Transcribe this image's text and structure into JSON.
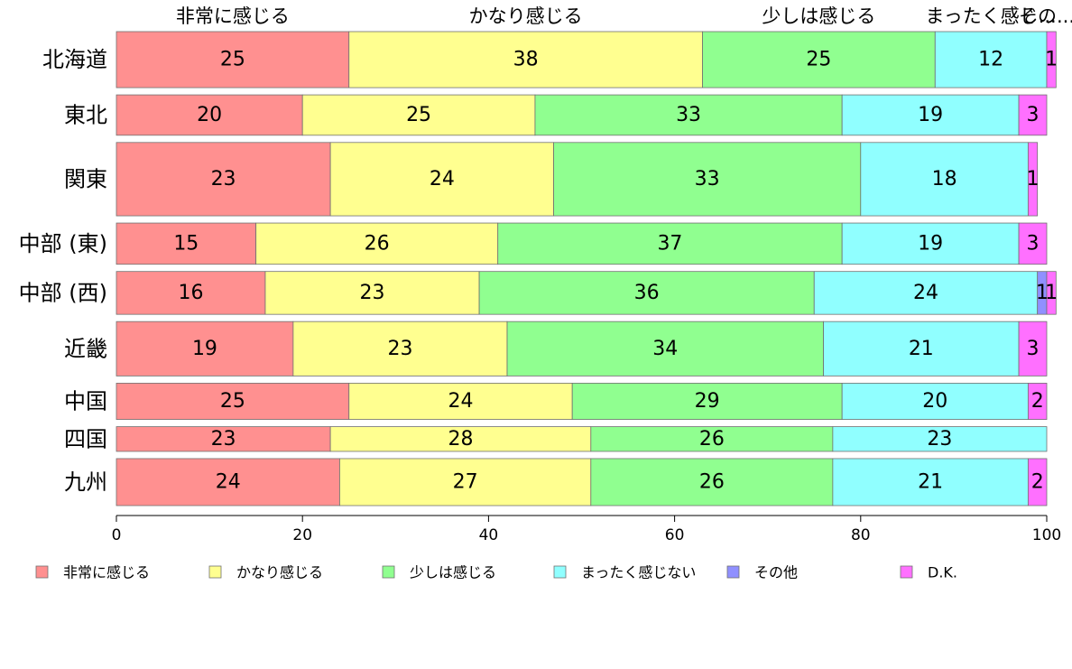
{
  "chart_data": {
    "type": "bar",
    "orientation": "horizontal",
    "stacked": true,
    "categories": [
      "北海道",
      "東北",
      "関東",
      "中部 (東)",
      "中部 (西)",
      "近畿",
      "中国",
      "四国",
      "九州"
    ],
    "series": [
      {
        "name": "非常に感じる",
        "top_label": "非常に感じる",
        "color": "#FF9090",
        "values": [
          25,
          20,
          23,
          15,
          16,
          19,
          25,
          23,
          24
        ]
      },
      {
        "name": "かなり感じる",
        "top_label": "かなり感じる",
        "color": "#FFFF90",
        "values": [
          38,
          25,
          24,
          26,
          23,
          23,
          24,
          28,
          27
        ]
      },
      {
        "name": "少しは感じる",
        "top_label": "少しは感じる",
        "color": "#90FF90",
        "values": [
          25,
          33,
          33,
          37,
          36,
          34,
          29,
          26,
          26
        ]
      },
      {
        "name": "まったく感じない",
        "top_label": "まったく感じ...",
        "color": "#90FFFF",
        "values": [
          12,
          19,
          18,
          19,
          24,
          21,
          20,
          23,
          21
        ]
      },
      {
        "name": "その他",
        "top_label": "その...",
        "color": "#9090FF",
        "values": [
          0,
          0,
          0,
          0,
          1,
          0,
          0,
          0,
          0
        ]
      },
      {
        "name": "D.K.",
        "color": "#FF70FF",
        "values": [
          1,
          3,
          1,
          3,
          1,
          3,
          2,
          0,
          2
        ]
      }
    ],
    "bar_heights_relative": [
      68,
      49,
      89,
      50,
      52,
      66,
      44,
      30,
      57
    ],
    "xlim": [
      0,
      100
    ],
    "xticks": [
      0,
      20,
      40,
      60,
      80,
      100
    ],
    "legend_position": "bottom",
    "grid": false
  }
}
